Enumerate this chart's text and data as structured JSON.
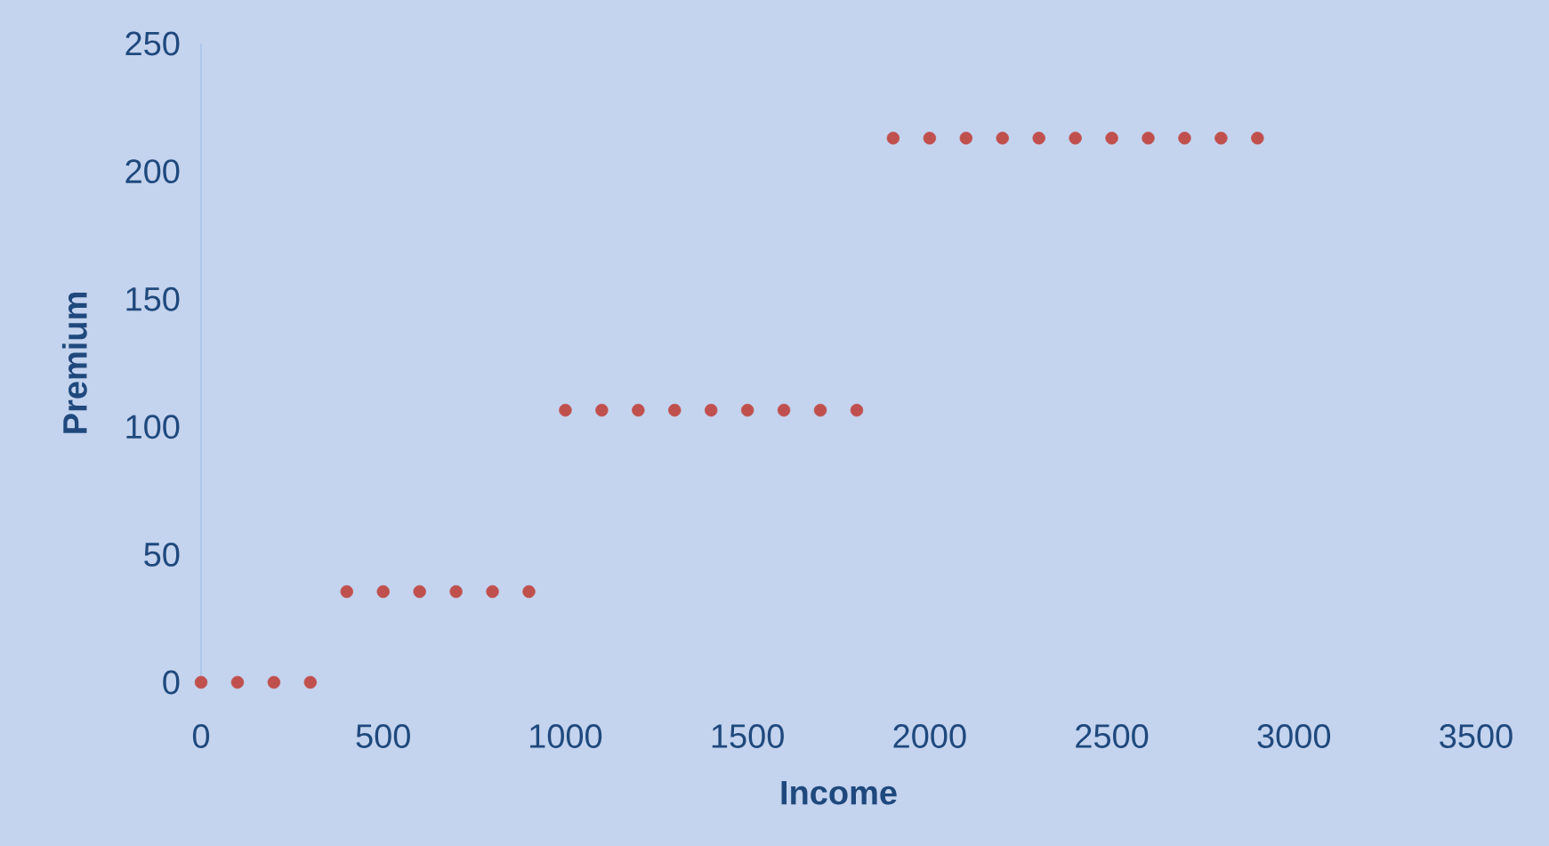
{
  "chart_data": {
    "type": "scatter",
    "xlabel": "Income",
    "ylabel": "Premium",
    "x": [
      0,
      100,
      200,
      300,
      400,
      500,
      600,
      700,
      800,
      900,
      1000,
      1100,
      1200,
      1300,
      1400,
      1500,
      1600,
      1700,
      1800,
      1900,
      2000,
      2100,
      2200,
      2300,
      2400,
      2500,
      2600,
      2700,
      2800,
      2900
    ],
    "values": [
      0,
      0,
      0,
      0,
      35.5,
      35.5,
      35.5,
      35.5,
      35.5,
      35.5,
      106.5,
      106.5,
      106.5,
      106.5,
      106.5,
      106.5,
      106.5,
      106.5,
      106.5,
      213,
      213,
      213,
      213,
      213,
      213,
      213,
      213,
      213,
      213,
      213
    ],
    "color": "#c0504d",
    "marker": "circle",
    "xlim": [
      0,
      3500
    ],
    "xticks": [
      0,
      500,
      1000,
      1500,
      2000,
      2500,
      3000,
      3500
    ],
    "ylim": [
      0,
      250
    ],
    "yticks": [
      0,
      50,
      100,
      150,
      200,
      250
    ],
    "grid": false
  }
}
